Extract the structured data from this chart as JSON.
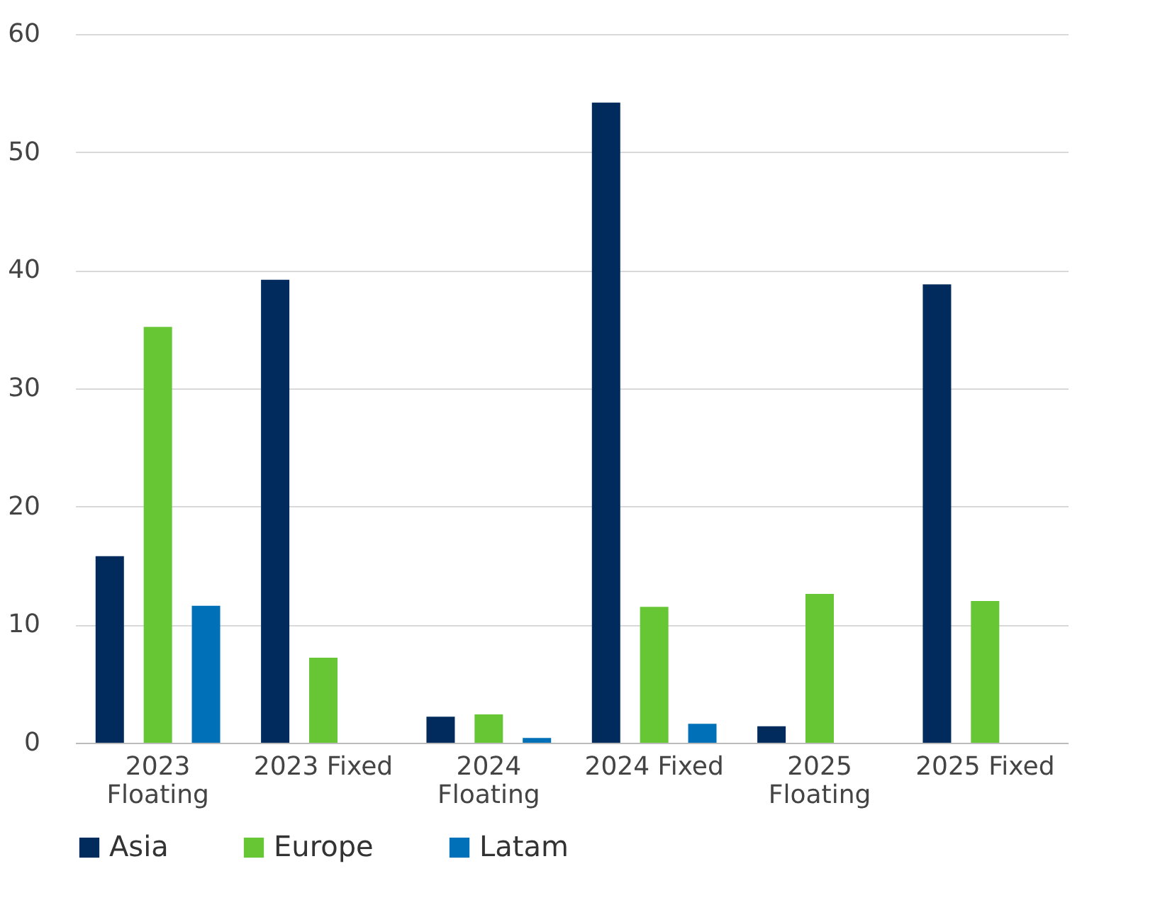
{
  "chart_data": {
    "type": "bar",
    "categories": [
      "2023 Floating",
      "2023 Fixed",
      "2024 Floating",
      "2024 Fixed",
      "2025 Floating",
      "2025 Fixed"
    ],
    "series": [
      {
        "name": "Asia",
        "color": "#002b5c",
        "values": [
          15.8,
          39.2,
          2.2,
          54.2,
          1.4,
          38.8
        ]
      },
      {
        "name": "Europe",
        "color": "#66c633",
        "values": [
          35.2,
          7.2,
          2.4,
          11.5,
          12.6,
          12.0
        ]
      },
      {
        "name": "Latam",
        "color": "#0071b9",
        "values": [
          11.6,
          null,
          0.4,
          1.6,
          null,
          null
        ]
      }
    ],
    "ylim": [
      0,
      60
    ],
    "yticks": [
      0,
      10,
      20,
      30,
      40,
      50,
      60
    ],
    "grid": "y",
    "legend": "bottom"
  }
}
